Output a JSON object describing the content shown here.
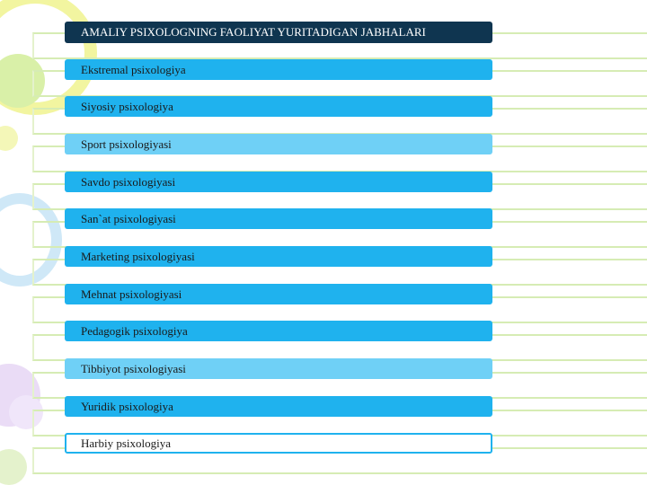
{
  "header": {
    "title": "AMALIY PSIXOLOGNING FAOLIYAT YURITADIGAN JABHALARI"
  },
  "items": [
    {
      "label": "Ekstremal psixologiya"
    },
    {
      "label": "Siyosiy psixologiya"
    },
    {
      "label": "Sport psixologiyasi"
    },
    {
      "label": "Savdo psixologiyasi"
    },
    {
      "label": "San`at psixologiyasi"
    },
    {
      "label": "Marketing psixologiyasi"
    },
    {
      "label": "Mehnat psixologiyasi"
    },
    {
      "label": "Pedagogik psixologiya"
    },
    {
      "label": "Tibbiyot psixologiyasi"
    },
    {
      "label": "Yuridik psixologiya"
    },
    {
      "label": "Harbiy psixologiya"
    }
  ],
  "colors": {
    "header_bg": "#0f3550",
    "item_bg": "#1fb2ee",
    "item_light_bg": "#6fd0f6",
    "stripe": "#d6ecb4"
  }
}
